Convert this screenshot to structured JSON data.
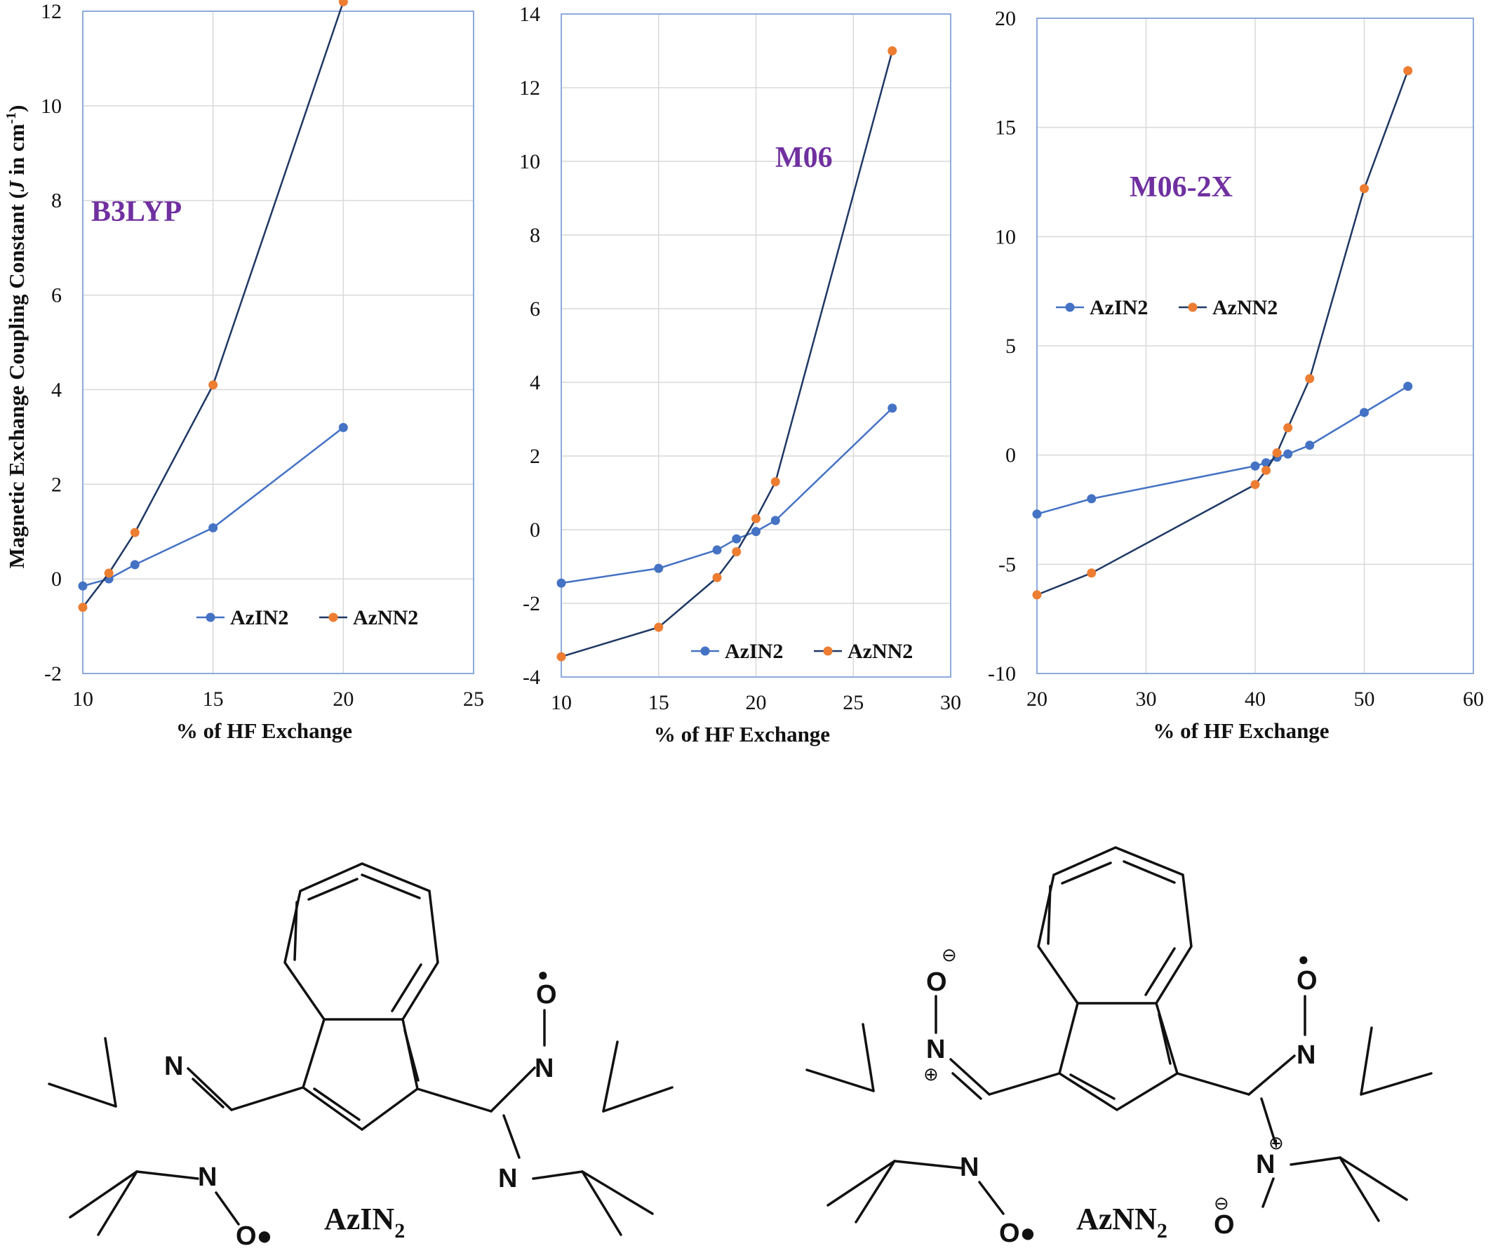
{
  "colors": {
    "AzIN2": "#4472c4",
    "AzNN2_line": "#1f3864",
    "AzNN2_marker": "#ed7d31",
    "title": "#7030a0",
    "frame": "#8eaadb",
    "grid": "#d9d9d9"
  },
  "chart_data": [
    {
      "type": "line",
      "title": "B3LYP",
      "xlabel": "% of HF Exchange",
      "ylabel_parts": [
        "Magnetic Exchange Coupling Constant (",
        "J",
        " in cm",
        "-1",
        ")"
      ],
      "xlim": [
        10,
        25
      ],
      "ylim": [
        -2,
        12
      ],
      "xticks": [
        10,
        15,
        20,
        25
      ],
      "yticks": [
        -2,
        0,
        2,
        4,
        6,
        8,
        10,
        12
      ],
      "legend": "bottom-right",
      "series": [
        {
          "name": "AzIN2",
          "x": [
            10,
            11,
            12,
            15,
            20
          ],
          "y": [
            -0.15,
            0.0,
            0.3,
            1.08,
            3.2
          ]
        },
        {
          "name": "AzNN2",
          "x": [
            10,
            11,
            12,
            15,
            20
          ],
          "y": [
            -0.6,
            0.12,
            0.98,
            4.1,
            12.2
          ]
        }
      ]
    },
    {
      "type": "line",
      "title": "M06",
      "xlabel": "% of HF Exchange",
      "xlim": [
        10,
        30
      ],
      "ylim": [
        -4,
        14
      ],
      "xticks": [
        10,
        15,
        20,
        25,
        30
      ],
      "yticks": [
        -4,
        -2,
        0,
        2,
        4,
        6,
        8,
        10,
        12,
        14
      ],
      "legend": "bottom-right",
      "series": [
        {
          "name": "AzIN2",
          "x": [
            10,
            15,
            18,
            19,
            20,
            21,
            27
          ],
          "y": [
            -1.45,
            -1.05,
            -0.55,
            -0.25,
            -0.05,
            0.25,
            3.3
          ]
        },
        {
          "name": "AzNN2",
          "x": [
            10,
            15,
            18,
            19,
            20,
            21,
            27
          ],
          "y": [
            -3.45,
            -2.65,
            -1.3,
            -0.6,
            0.3,
            1.3,
            13.0
          ]
        }
      ]
    },
    {
      "type": "line",
      "title": "M06-2X",
      "xlabel": "% of HF Exchange",
      "xlim": [
        20,
        60
      ],
      "ylim": [
        -10,
        20
      ],
      "xticks": [
        20,
        30,
        40,
        50,
        60
      ],
      "yticks": [
        -10,
        -5,
        0,
        5,
        10,
        15,
        20
      ],
      "legend": "middle-left",
      "series": [
        {
          "name": "AzIN2",
          "x": [
            20,
            25,
            40,
            41,
            42,
            43,
            45,
            50,
            54
          ],
          "y": [
            -2.7,
            -2.0,
            -0.5,
            -0.35,
            -0.1,
            0.05,
            0.45,
            1.95,
            3.15
          ]
        },
        {
          "name": "AzNN2",
          "x": [
            20,
            25,
            40,
            41,
            42,
            43,
            45,
            50,
            54
          ],
          "y": [
            -6.4,
            -5.4,
            -1.35,
            -0.7,
            0.1,
            1.25,
            3.5,
            12.2,
            17.6
          ]
        }
      ]
    }
  ],
  "molecules": {
    "left": {
      "name": "AzIN",
      "sub": "2"
    },
    "right": {
      "name": "AzNN",
      "sub": "2"
    },
    "atoms": {
      "N": "N",
      "O": "O",
      "O_dot": "O●",
      "plus": "⊕",
      "minus": "⊖",
      "dot": "●"
    }
  }
}
